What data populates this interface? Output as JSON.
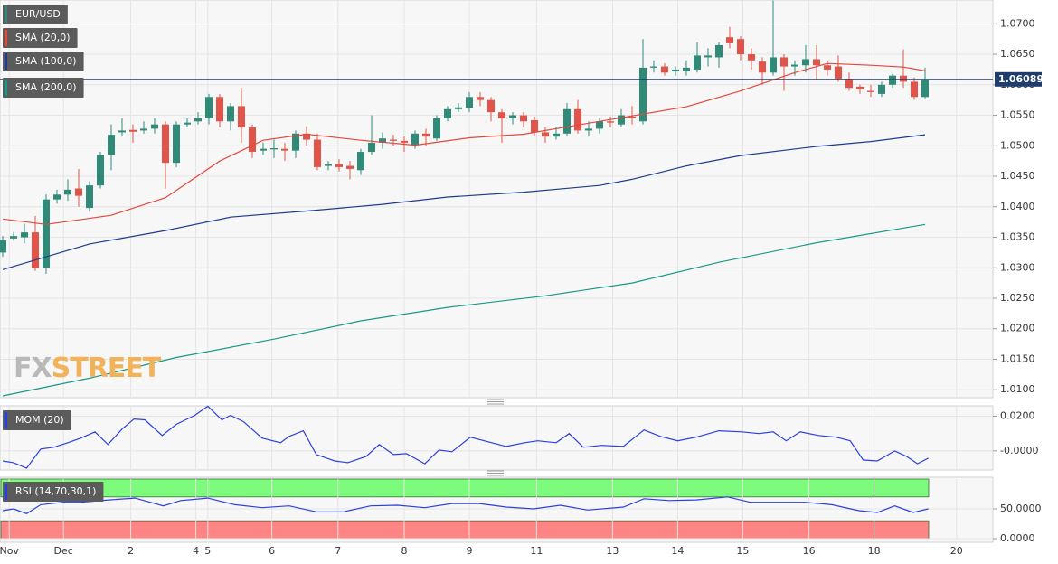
{
  "chart_data": [
    {
      "type": "candlestick",
      "title": "EUR/USD",
      "up_color": "#2f8a78",
      "down_color": "#e0544a",
      "open": [
        1.0325,
        1.0348,
        1.035,
        1.0358,
        1.03,
        1.0412,
        1.042,
        1.043,
        1.0398,
        1.0435,
        1.0485,
        1.0522,
        1.0526,
        1.0525,
        1.0528,
        1.0535,
        1.0472,
        1.0535,
        1.054,
        1.0545,
        1.058,
        1.054,
        1.0565,
        1.053,
        1.0492,
        1.0494,
        1.0495,
        1.0492,
        1.052,
        1.051,
        1.0467,
        1.047,
        1.0467,
        1.046,
        1.049,
        1.0505,
        1.051,
        1.0508,
        1.0502,
        1.052,
        1.0512,
        1.0545,
        1.056,
        1.0562,
        1.058,
        1.0575,
        1.0555,
        1.0545,
        1.055,
        1.0542,
        1.0522,
        1.0515,
        1.052,
        1.056,
        1.0525,
        1.0528,
        1.054,
        1.0535,
        1.0548,
        1.054,
        1.0628,
        1.063,
        1.0622,
        1.0622,
        1.0625,
        1.0645,
        1.0645,
        1.0678,
        1.0675,
        1.065,
        1.0638,
        1.062,
        1.0645,
        1.063,
        1.0632,
        1.0642,
        1.0632,
        1.063,
        1.061,
        1.0597,
        1.059,
        1.0585,
        1.06,
        1.0615,
        1.0605,
        1.058
      ],
      "high": [
        1.0352,
        1.0358,
        1.0372,
        1.0385,
        1.042,
        1.0428,
        1.0445,
        1.0462,
        1.0442,
        1.049,
        1.0535,
        1.0545,
        1.0535,
        1.054,
        1.0545,
        1.054,
        1.054,
        1.0545,
        1.0555,
        1.0585,
        1.0585,
        1.057,
        1.0595,
        1.0535,
        1.0505,
        1.051,
        1.0505,
        1.0525,
        1.0532,
        1.052,
        1.0475,
        1.0478,
        1.0475,
        1.0495,
        1.055,
        1.0522,
        1.0518,
        1.0515,
        1.0525,
        1.0528,
        1.055,
        1.0565,
        1.057,
        1.0588,
        1.0588,
        1.058,
        1.056,
        1.0555,
        1.0555,
        1.0548,
        1.053,
        1.053,
        1.057,
        1.0575,
        1.054,
        1.0545,
        1.0548,
        1.056,
        1.0565,
        1.0675,
        1.064,
        1.0635,
        1.063,
        1.064,
        1.067,
        1.066,
        1.067,
        1.0695,
        1.068,
        1.066,
        1.0645,
        1.0738,
        1.065,
        1.064,
        1.0665,
        1.0665,
        1.064,
        1.0648,
        1.062,
        1.06,
        1.06,
        1.0605,
        1.0618,
        1.0658,
        1.0612,
        1.0628
      ],
      "low": [
        1.0318,
        1.0345,
        1.034,
        1.0295,
        1.029,
        1.0405,
        1.041,
        1.04,
        1.0392,
        1.043,
        1.046,
        1.0515,
        1.0505,
        1.052,
        1.052,
        1.043,
        1.0465,
        1.053,
        1.0535,
        1.0535,
        1.053,
        1.0525,
        1.0505,
        1.048,
        1.0485,
        1.048,
        1.0475,
        1.048,
        1.05,
        1.046,
        1.046,
        1.0458,
        1.0445,
        1.0452,
        1.0485,
        1.0495,
        1.05,
        1.049,
        1.0495,
        1.05,
        1.0508,
        1.054,
        1.0555,
        1.0555,
        1.0565,
        1.054,
        1.0505,
        1.0535,
        1.053,
        1.0515,
        1.0505,
        1.051,
        1.0515,
        1.052,
        1.0515,
        1.052,
        1.053,
        1.053,
        1.0535,
        1.0535,
        1.062,
        1.0615,
        1.0615,
        1.0615,
        1.062,
        1.063,
        1.0628,
        1.066,
        1.064,
        1.0625,
        1.06,
        1.0615,
        1.059,
        1.0615,
        1.062,
        1.061,
        1.0615,
        1.0605,
        1.059,
        1.0585,
        1.058,
        1.058,
        1.0595,
        1.0595,
        1.0575,
        1.0578
      ],
      "close": [
        1.0345,
        1.0352,
        1.0358,
        1.03,
        1.0412,
        1.042,
        1.0428,
        1.0418,
        1.0435,
        1.0485,
        1.0518,
        1.0525,
        1.0523,
        1.0528,
        1.0535,
        1.0472,
        1.0535,
        1.0538,
        1.0545,
        1.058,
        1.054,
        1.0565,
        1.053,
        1.049,
        1.0495,
        1.0496,
        1.0492,
        1.052,
        1.051,
        1.0465,
        1.047,
        1.0465,
        1.0462,
        1.049,
        1.0505,
        1.0512,
        1.0508,
        1.0505,
        1.052,
        1.0515,
        1.0545,
        1.056,
        1.0563,
        1.058,
        1.0575,
        1.0555,
        1.0545,
        1.055,
        1.054,
        1.0522,
        1.0515,
        1.052,
        1.056,
        1.0525,
        1.0528,
        1.054,
        1.0538,
        1.055,
        1.0545,
        1.0628,
        1.063,
        1.062,
        1.0625,
        1.0628,
        1.0648,
        1.0648,
        1.0665,
        1.0668,
        1.065,
        1.064,
        1.062,
        1.0645,
        1.063,
        1.0633,
        1.0642,
        1.0632,
        1.0625,
        1.061,
        1.0595,
        1.0593,
        1.0588,
        1.06,
        1.0615,
        1.0605,
        1.058,
        1.06089
      ],
      "series": [
        {
          "name": "SMA (20,0)",
          "color": "#e2493b",
          "x": [
            0,
            4,
            10,
            15,
            20,
            24,
            28,
            33,
            38,
            43,
            48,
            53,
            58,
            63,
            68,
            73,
            76,
            80,
            83,
            85
          ],
          "values": [
            1.038,
            1.0371,
            1.0386,
            1.0415,
            1.0475,
            1.0509,
            1.0519,
            1.0509,
            1.0501,
            1.0513,
            1.0519,
            1.0534,
            1.0549,
            1.0564,
            1.059,
            1.062,
            1.0635,
            1.0632,
            1.0629,
            1.0623
          ]
        },
        {
          "name": "SMA (100,0)",
          "color": "#1e3c8c",
          "x": [
            0,
            8,
            15,
            21,
            28,
            35,
            41,
            48,
            55,
            58,
            63,
            68,
            75,
            80,
            85
          ],
          "values": [
            1.0297,
            1.0339,
            1.0361,
            1.0383,
            1.0393,
            1.0404,
            1.0416,
            1.0424,
            1.0435,
            1.0445,
            1.0467,
            1.0484,
            1.0499,
            1.0507,
            1.0518
          ]
        },
        {
          "name": "SMA (200,0)",
          "color": "#1b9988",
          "x": [
            0,
            8,
            16,
            25,
            33,
            41,
            50,
            58,
            66,
            75,
            85
          ],
          "values": [
            1.009,
            1.0119,
            1.0153,
            1.0183,
            1.0213,
            1.0235,
            1.0254,
            1.0275,
            1.0309,
            1.0341,
            1.0371
          ]
        }
      ],
      "ylim": [
        1.0087,
        1.0739
      ],
      "yticks": [
        {
          "value": 1.01,
          "label": "1.0100"
        },
        {
          "value": 1.015,
          "label": "1.0150"
        },
        {
          "value": 1.02,
          "label": "1.0200"
        },
        {
          "value": 1.025,
          "label": "1.0250"
        },
        {
          "value": 1.03,
          "label": "1.0300"
        },
        {
          "value": 1.035,
          "label": "1.0350"
        },
        {
          "value": 1.04,
          "label": "1.0400"
        },
        {
          "value": 1.045,
          "label": "1.0450"
        },
        {
          "value": 1.05,
          "label": "1.0500"
        },
        {
          "value": 1.055,
          "label": "1.0550"
        },
        {
          "value": 1.06,
          "label": "1.0600"
        },
        {
          "value": 1.065,
          "label": "1.0650"
        },
        {
          "value": 1.07,
          "label": "1.0700"
        }
      ],
      "last_price": {
        "value": 1.06089,
        "label": "1.06089",
        "color": "#1e3c6e"
      },
      "watermark": [
        "FX",
        "STREET"
      ],
      "grid": true
    },
    {
      "type": "line",
      "series": [
        {
          "name": "MOM (20)",
          "color": "#2a3fe0",
          "x": [
            0,
            1,
            2.2,
            3.5,
            4.7,
            6,
            7.2,
            8.5,
            9.7,
            11,
            12.1,
            13.1,
            14.7,
            16,
            17.7,
            18.9,
            20.2,
            21,
            22.2,
            23.9,
            25.6,
            26.4,
            27.7,
            28.9,
            30.6,
            31.8,
            33.5,
            34.7,
            36,
            37.2,
            38.9,
            40.2,
            41.4,
            43.1,
            44.7,
            46.4,
            48.1,
            49.3,
            51,
            52.2,
            53.5,
            55.2,
            57.2,
            59.1,
            60.6,
            62.2,
            63.9,
            66,
            68.1,
            69.7,
            71,
            72.2,
            73.5,
            75.2,
            76.8,
            78.1,
            79.3,
            80.6,
            82.2,
            83.3,
            84.3,
            85.3
          ],
          "values": [
            -0.0058,
            -0.0068,
            -0.01,
            0.0011,
            0.0021,
            0.0047,
            0.0074,
            0.011,
            0.0037,
            0.0126,
            0.0184,
            0.0179,
            0.0089,
            0.0153,
            0.0205,
            0.0258,
            0.0179,
            0.0205,
            0.0168,
            0.0074,
            0.0047,
            0.0084,
            0.0116,
            -0.0021,
            -0.0058,
            -0.0068,
            -0.0032,
            0.0037,
            -0.0021,
            -0.0016,
            -0.0074,
            0.0005,
            -0.0005,
            0.0079,
            0.0053,
            0.0026,
            0.0047,
            0.0058,
            0.0047,
            0.01,
            0.0021,
            0.0032,
            0.0026,
            0.0121,
            0.0084,
            0.0058,
            0.0079,
            0.0116,
            0.011,
            0.01,
            0.011,
            0.0058,
            0.011,
            0.0089,
            0.0079,
            0.0058,
            -0.0053,
            -0.0058,
            0.0,
            -0.0032,
            -0.0074,
            -0.0042
          ]
        }
      ],
      "ylim": [
        -0.0105,
        0.026
      ],
      "yticks": [
        {
          "value": 0.02,
          "label": "0.0200"
        },
        {
          "value": 0,
          "label": "-0.0000"
        }
      ],
      "grid": true
    },
    {
      "type": "line",
      "series": [
        {
          "name": "RSI (14,70,30,1)",
          "color": "#2a3fe0",
          "x": [
            0,
            1,
            2.2,
            3.5,
            5.6,
            7.2,
            9.8,
            12.2,
            14.8,
            16.4,
            18.9,
            21.4,
            23.9,
            26.4,
            28.9,
            31.4,
            33.9,
            36.4,
            38.9,
            41.4,
            43.9,
            46.4,
            48.9,
            51.4,
            53.9,
            57.2,
            59.1,
            61.4,
            63.9,
            66.8,
            68.9,
            71.4,
            73.9,
            76.4,
            78.9,
            80.6,
            82.2,
            83.9,
            85.3
          ],
          "values": [
            47,
            50,
            42,
            57,
            61,
            61,
            65,
            68,
            55,
            64,
            68,
            57,
            52,
            55,
            45,
            45,
            55,
            56,
            52,
            59,
            59,
            53,
            50,
            56,
            48,
            53,
            67,
            64,
            65,
            70,
            61,
            61,
            61,
            57,
            47,
            44,
            55,
            44,
            50
          ]
        }
      ],
      "zones": [
        {
          "from": 70,
          "to": 100,
          "color": "#7dfb7d"
        },
        {
          "from": 0,
          "to": 30,
          "color": "#ff8585"
        }
      ],
      "ylim": [
        0,
        100
      ],
      "yticks": [
        {
          "value": 50,
          "label": "50.0000"
        },
        {
          "value": 0,
          "label": "0.0000"
        }
      ],
      "xlim": [
        -0.25,
        91.25
      ],
      "xticks": [
        {
          "value": 0.6,
          "label": "Nov"
        },
        {
          "value": 5.6,
          "label": "Dec"
        },
        {
          "value": 11.8,
          "label": "2"
        },
        {
          "value": 17.8,
          "label": "4"
        },
        {
          "value": 18.9,
          "label": "5"
        },
        {
          "value": 24.8,
          "label": "6"
        },
        {
          "value": 30.9,
          "label": "7"
        },
        {
          "value": 37,
          "label": "8"
        },
        {
          "value": 43,
          "label": "9"
        },
        {
          "value": 49.2,
          "label": "11"
        },
        {
          "value": 56.2,
          "label": "13"
        },
        {
          "value": 62.2,
          "label": "14"
        },
        {
          "value": 68.2,
          "label": "15"
        },
        {
          "value": 74.3,
          "label": "16"
        },
        {
          "value": 80.3,
          "label": "18"
        },
        {
          "value": 87.9,
          "label": "20"
        }
      ],
      "grid": true
    }
  ]
}
